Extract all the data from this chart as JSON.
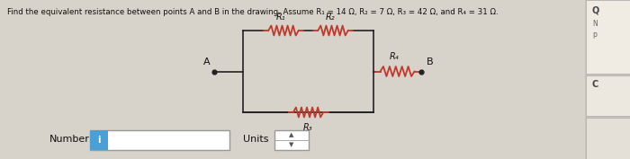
{
  "title": "Find the equivalent resistance between points A and B in the drawing. Assume R₁ = 14 Ω, R₂ = 7 Ω, R₃ = 42 Ω, and R₄ = 31 Ω.",
  "bg_color": "#cac5bc",
  "circuit_bg": "#e8e4de",
  "r1_label": "R₁",
  "r2_label": "R₂",
  "r3_label": "R₃",
  "r4_label": "R₄",
  "point_a": "A",
  "point_b": "B",
  "resistor_color": "#c0392b",
  "line_color": "#222222",
  "text_color": "#111111",
  "number_label": "Number",
  "units_label": "Units",
  "right_panel1_color": "#f5f0e8",
  "right_panel2_color": "#e8e4de",
  "right_panel3_color": "#e0dbd2"
}
